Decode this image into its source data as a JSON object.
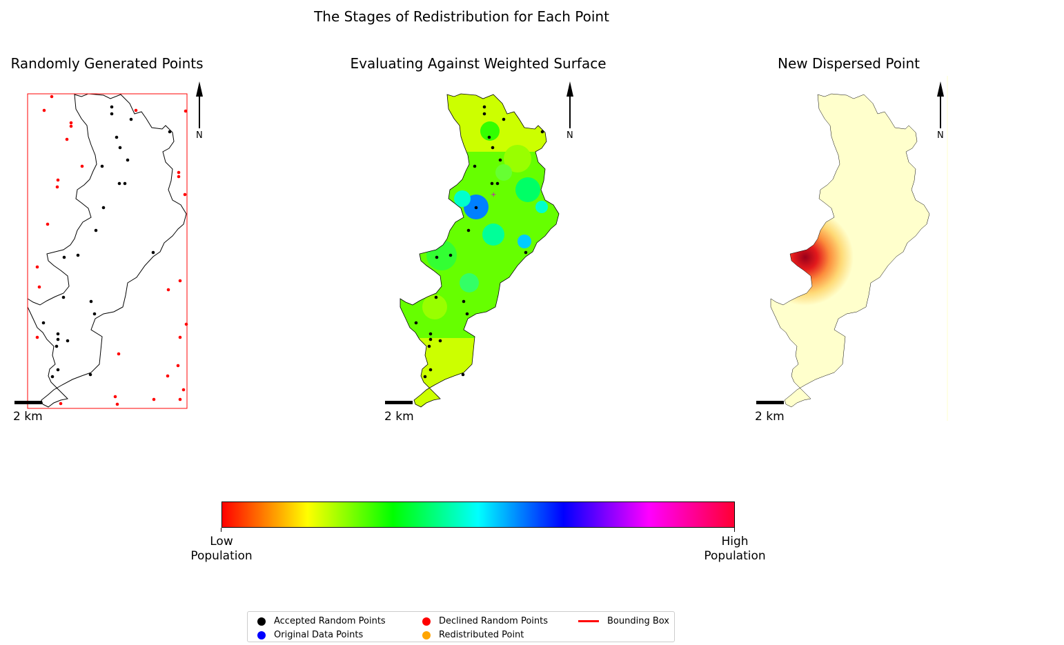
{
  "figure": {
    "title": "The Stages of Redistribution for Each Point"
  },
  "panels": [
    {
      "title": "Randomly Generated Points",
      "scale_label": "2 km",
      "north_label": "N"
    },
    {
      "title": "Evaluating Against Weighted Surface",
      "scale_label": "2 km",
      "north_label": "N"
    },
    {
      "title": "New Dispersed Point",
      "scale_label": "2 km",
      "north_label": "N"
    }
  ],
  "colorbar": {
    "low_label_1": "Low",
    "low_label_2": "Population",
    "high_label_1": "High",
    "high_label_2": "Population",
    "colors": [
      "#ff0000",
      "#ffff00",
      "#00ff00",
      "#00ffff",
      "#0000ff",
      "#ff00ff",
      "#ff0033"
    ]
  },
  "legend": {
    "items": [
      {
        "label": "Accepted Random Points",
        "color": "#000000",
        "kind": "dot"
      },
      {
        "label": "Original Data Points",
        "color": "#0000ff",
        "kind": "dot"
      },
      {
        "label": "Declined Random Points",
        "color": "#ff0000",
        "kind": "dot"
      },
      {
        "label": "Redistributed Point",
        "color": "#ffa500",
        "kind": "dot"
      },
      {
        "label": "Bounding Box",
        "color": "#ff0000",
        "kind": "line"
      }
    ]
  },
  "colors": {
    "accepted_point": "#000000",
    "declined_point": "#ff0000",
    "bounding_box": "#ff0000",
    "heat_peak": "#b2001a",
    "heat_base": "#ffffcc"
  }
}
